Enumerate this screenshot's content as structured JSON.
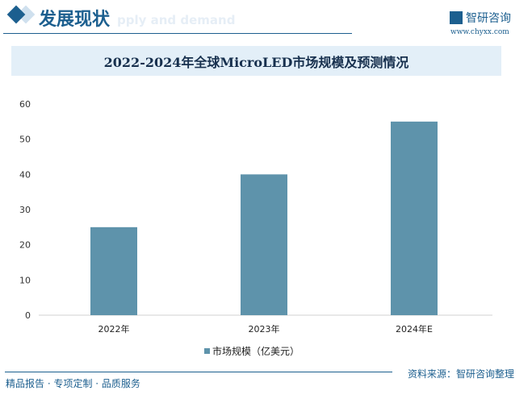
{
  "header": {
    "title": "发展现状",
    "ghost_text": "pply and demand",
    "logo_text": "智研咨询",
    "url": "www.chyxx.com"
  },
  "chart_data": {
    "type": "bar",
    "title": "2022-2024年全球MicroLED市场规模及预测情况",
    "categories": [
      "2022年",
      "2023年",
      "2024年E"
    ],
    "series": [
      {
        "name": "市场规模（亿美元）",
        "values": [
          25,
          40,
          55
        ],
        "color": "#5e93ab"
      }
    ],
    "ylim": [
      0,
      60
    ],
    "yticks": [
      0,
      10,
      20,
      30,
      40,
      50,
      60
    ],
    "grid": false,
    "legend": "bottom"
  },
  "footer": {
    "left": "精品报告 · 专项定制 · 品质服务",
    "source": "资料来源：智研咨询整理"
  }
}
